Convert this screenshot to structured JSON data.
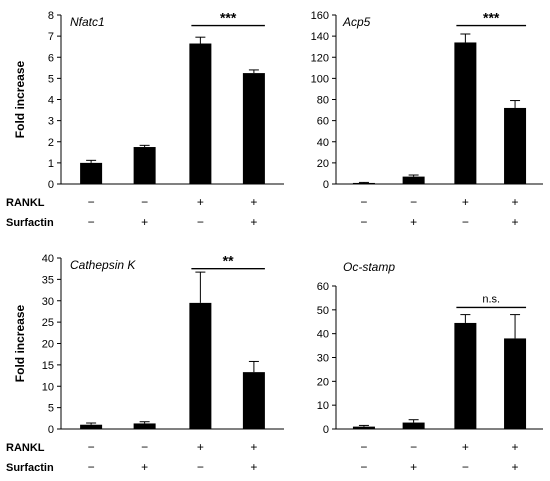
{
  "row_labels": {
    "rankl": "RANKL",
    "surfactin": "Surfactin"
  },
  "conditions": [
    {
      "rankl": "−",
      "surfactin": "−"
    },
    {
      "rankl": "−",
      "surfactin": "+"
    },
    {
      "rankl": "+",
      "surfactin": "−"
    },
    {
      "rankl": "+",
      "surfactin": "+"
    }
  ],
  "chart_data": [
    {
      "type": "bar",
      "title": "Nfatc1",
      "ylabel": "Fold increase",
      "ylim": [
        0,
        8
      ],
      "yticks": [
        0,
        1,
        2,
        3,
        4,
        5,
        6,
        7,
        8
      ],
      "categories": [
        "RANKL−/Surfactin−",
        "RANKL−/Surfactin+",
        "RANKL+/Surfactin−",
        "RANKL+/Surfactin+"
      ],
      "values": [
        1.0,
        1.75,
        6.65,
        5.25
      ],
      "errors": [
        0.12,
        0.08,
        0.3,
        0.15
      ],
      "color": "#000000",
      "significance": {
        "from": 2,
        "to": 3,
        "label": "***",
        "y": 7.5
      }
    },
    {
      "type": "bar",
      "title": "Acp5",
      "ylabel": "",
      "ylim": [
        0,
        160
      ],
      "yticks": [
        0,
        20,
        40,
        60,
        80,
        100,
        120,
        140,
        160
      ],
      "categories": [
        "RANKL−/Surfactin−",
        "RANKL−/Surfactin+",
        "RANKL+/Surfactin−",
        "RANKL+/Surfactin+"
      ],
      "values": [
        1,
        7,
        134,
        72
      ],
      "errors": [
        0.5,
        1.5,
        8,
        7
      ],
      "color": "#000000",
      "significance": {
        "from": 2,
        "to": 3,
        "label": "***",
        "y": 150
      }
    },
    {
      "type": "bar",
      "title": "Cathepsin K",
      "ylabel": "Fold increase",
      "ylim": [
        0,
        40
      ],
      "yticks": [
        0,
        5,
        10,
        15,
        20,
        25,
        30,
        35,
        40
      ],
      "categories": [
        "RANKL−/Surfactin−",
        "RANKL−/Surfactin+",
        "RANKL+/Surfactin−",
        "RANKL+/Surfactin+"
      ],
      "values": [
        1,
        1.3,
        29.5,
        13.3
      ],
      "errors": [
        0.4,
        0.4,
        7.2,
        2.5
      ],
      "color": "#000000",
      "significance": {
        "from": 2,
        "to": 3,
        "label": "**",
        "y": 37.5
      }
    },
    {
      "type": "bar",
      "title": "Oc-stamp",
      "ylabel": "",
      "ylim": [
        0,
        60
      ],
      "yticks": [
        0,
        10,
        20,
        30,
        40,
        50,
        60
      ],
      "categories": [
        "RANKL−/Surfactin−",
        "RANKL−/Surfactin+",
        "RANKL+/Surfactin−",
        "RANKL+/Surfactin+"
      ],
      "values": [
        1,
        2.7,
        44.5,
        38
      ],
      "errors": [
        0.5,
        1.2,
        3.5,
        10
      ],
      "color": "#000000",
      "significance": {
        "from": 2,
        "to": 3,
        "label": "n.s.",
        "y": 51
      }
    }
  ]
}
